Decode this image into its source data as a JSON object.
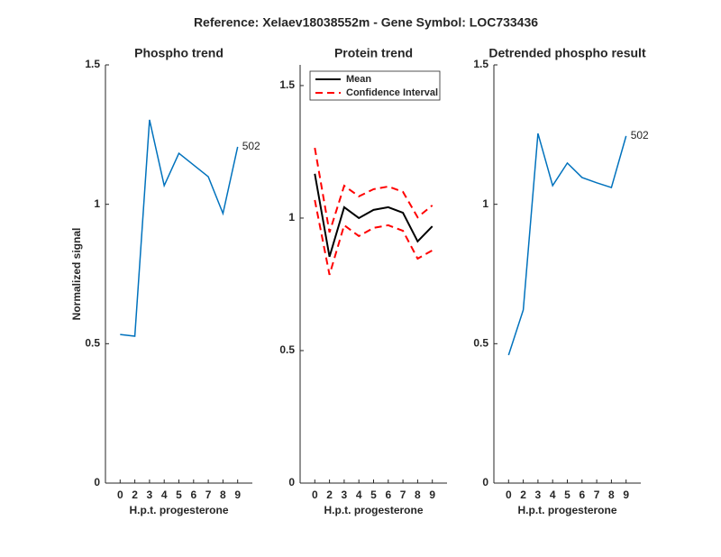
{
  "title": "Reference:  Xelaev18038552m - Gene Symbol:  LOC733436",
  "chart_data": [
    {
      "type": "line",
      "title": "Phospho trend",
      "xlabel": "H.p.t. progesterone",
      "ylabel": "Normalized signal",
      "categories": [
        "0",
        "2",
        "3",
        "4",
        "5",
        "6",
        "7",
        "8",
        "9"
      ],
      "series": [
        {
          "color": "#0072bd",
          "values": [
            0.533,
            0.527,
            1.303,
            1.067,
            1.183,
            1.141,
            1.099,
            0.967,
            1.206
          ]
        }
      ],
      "annotation": "502",
      "ylim": [
        0,
        1.5
      ],
      "yticks": [
        0,
        0.5,
        1,
        1.5
      ]
    },
    {
      "type": "band-line",
      "title": "Protein trend",
      "xlabel": "H.p.t. progesterone",
      "categories": [
        "0",
        "2",
        "3",
        "4",
        "5",
        "6",
        "7",
        "8",
        "9"
      ],
      "series": [
        {
          "name": "Mean",
          "color": "#000000",
          "values": [
            1.167,
            0.854,
            1.041,
            1.0,
            1.031,
            1.041,
            1.02,
            0.912,
            0.969
          ]
        },
        {
          "name": "Confidence Interval",
          "color": "#ff0000",
          "dashed": true,
          "upper": [
            1.265,
            0.946,
            1.122,
            1.082,
            1.109,
            1.119,
            1.099,
            1.003,
            1.048
          ],
          "lower": [
            1.068,
            0.786,
            0.973,
            0.932,
            0.963,
            0.973,
            0.952,
            0.847,
            0.878
          ]
        }
      ],
      "legend": "upper left",
      "ylim": [
        0,
        1.578
      ],
      "yticks": [
        0,
        0.5,
        1,
        1.5
      ]
    },
    {
      "type": "line",
      "title": "Detrended phospho result",
      "xlabel": "H.p.t. progesterone",
      "categories": [
        "0",
        "2",
        "3",
        "4",
        "5",
        "6",
        "7",
        "8",
        "9"
      ],
      "series": [
        {
          "color": "#0072bd",
          "values": [
            0.459,
            0.621,
            1.254,
            1.067,
            1.148,
            1.096,
            1.077,
            1.06,
            1.245
          ]
        }
      ],
      "annotation": "502",
      "ylim": [
        0,
        1.5
      ],
      "yticks": [
        0,
        0.5,
        1,
        1.5
      ]
    }
  ]
}
